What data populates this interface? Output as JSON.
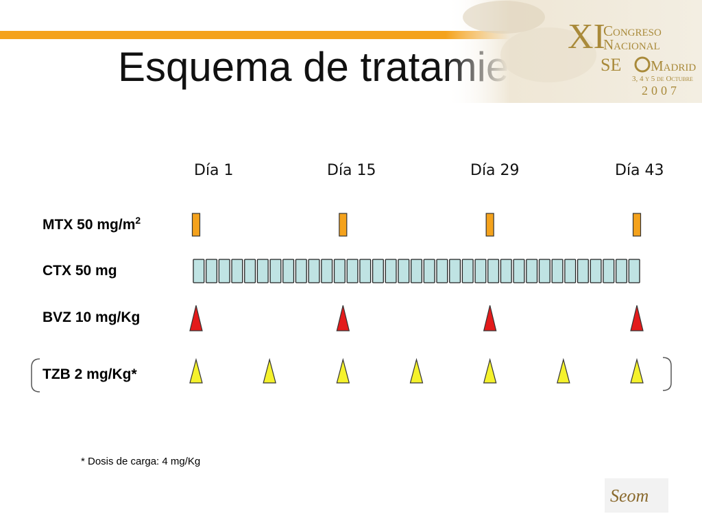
{
  "slide": {
    "title": "Esquema de tratamiento",
    "accent_color": "#f4a21c"
  },
  "banner": {
    "numeral": "XI",
    "line1": "Congreso",
    "line2": "Nacional",
    "org_left": "SE",
    "org_right": "Madrid",
    "dates": "3, 4 y 5 de Octubre",
    "year": "2007"
  },
  "days": [
    "Día 1",
    "Día 15",
    "Día 29",
    "Día 43"
  ],
  "rows": {
    "mtx": {
      "label": "MTX 50 mg/m",
      "sup": "2",
      "color": "#f4a21c",
      "shape": "bar",
      "schedule_days": [
        1,
        15,
        29,
        43
      ]
    },
    "ctx": {
      "label": "CTX 50 mg",
      "color": "#bfe3e3",
      "shape": "cell",
      "schedule": "daily",
      "count": 35
    },
    "bvz": {
      "label": "BVZ 10 mg/Kg",
      "color": "#e31b1b",
      "shape": "triangle",
      "schedule_days": [
        1,
        15,
        29,
        43
      ]
    },
    "tzb": {
      "label": "TZB 2 mg/Kg*",
      "color": "#f5f22c",
      "shape": "triangle",
      "schedule": "weekly",
      "count": 7
    }
  },
  "footnote": "* Dosis de carga: 4 mg/Kg",
  "footer_logo": {
    "text": "Seom",
    "icon": "seom-logo-icon"
  }
}
